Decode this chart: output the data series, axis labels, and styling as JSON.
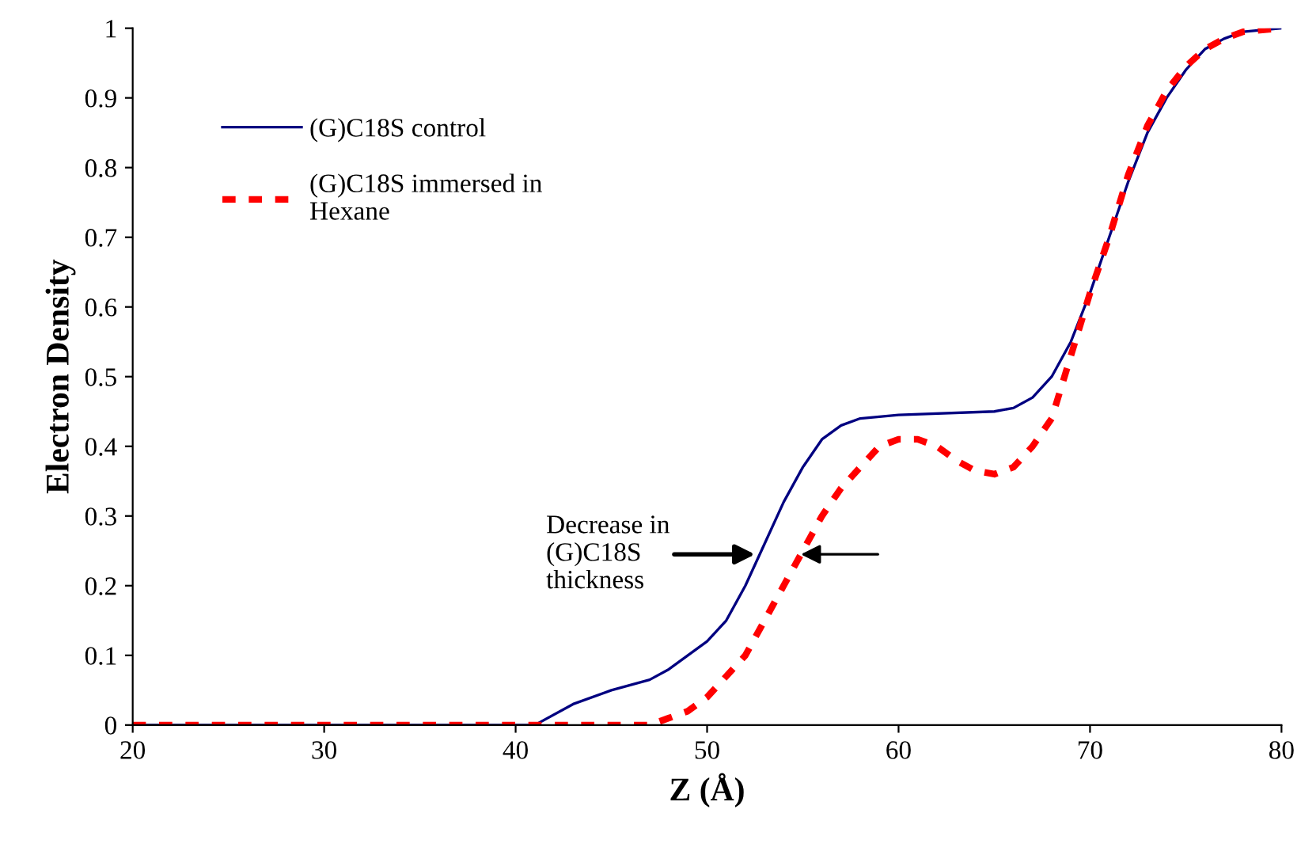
{
  "chart_data": {
    "type": "line",
    "xlabel": "Z (Å)",
    "ylabel": "Electron Density",
    "xlim": [
      20,
      80
    ],
    "xticks": [
      20,
      30,
      40,
      50,
      60,
      70,
      80
    ],
    "ylim": [
      0,
      1
    ],
    "yticks": [
      0,
      0.1,
      0.2,
      0.3,
      0.4,
      0.5,
      0.6,
      0.7,
      0.8,
      0.9,
      1
    ],
    "grid": false,
    "legend": "top left",
    "series": [
      {
        "name": "(G)C18S control",
        "color": "#000080",
        "line_style": "solid",
        "x": [
          20,
          41,
          43,
          45,
          47,
          48,
          50,
          51,
          52,
          53,
          54,
          55,
          56,
          57,
          58,
          60,
          65,
          66,
          67,
          68,
          69,
          70,
          71,
          72,
          73,
          74,
          75,
          76,
          77,
          78,
          80
        ],
        "values": [
          0,
          0,
          0.03,
          0.05,
          0.065,
          0.08,
          0.12,
          0.15,
          0.2,
          0.26,
          0.32,
          0.37,
          0.41,
          0.43,
          0.44,
          0.445,
          0.45,
          0.455,
          0.47,
          0.5,
          0.55,
          0.62,
          0.7,
          0.78,
          0.85,
          0.9,
          0.94,
          0.97,
          0.985,
          0.995,
          1
        ]
      },
      {
        "name": "(G)C18S immersed in\nHexane",
        "color": "#ff0000",
        "line_style": "dashed",
        "x": [
          20,
          47,
          48,
          49,
          50,
          51,
          52,
          53,
          54,
          55,
          56,
          57,
          58,
          59,
          60,
          61,
          62,
          63,
          64,
          65,
          66,
          67,
          68,
          69,
          70,
          71,
          72,
          73,
          74,
          75,
          76,
          77,
          78,
          80
        ],
        "values": [
          0,
          0,
          0.01,
          0.02,
          0.04,
          0.07,
          0.1,
          0.15,
          0.2,
          0.25,
          0.3,
          0.34,
          0.37,
          0.4,
          0.41,
          0.41,
          0.4,
          0.38,
          0.365,
          0.36,
          0.37,
          0.4,
          0.44,
          0.53,
          0.62,
          0.7,
          0.79,
          0.86,
          0.91,
          0.945,
          0.97,
          0.985,
          0.995,
          1
        ]
      }
    ],
    "annotations": [
      {
        "text": "Decrease in\n(G)C18S\nthickness",
        "x": 52.5,
        "y": 0.245
      }
    ]
  }
}
